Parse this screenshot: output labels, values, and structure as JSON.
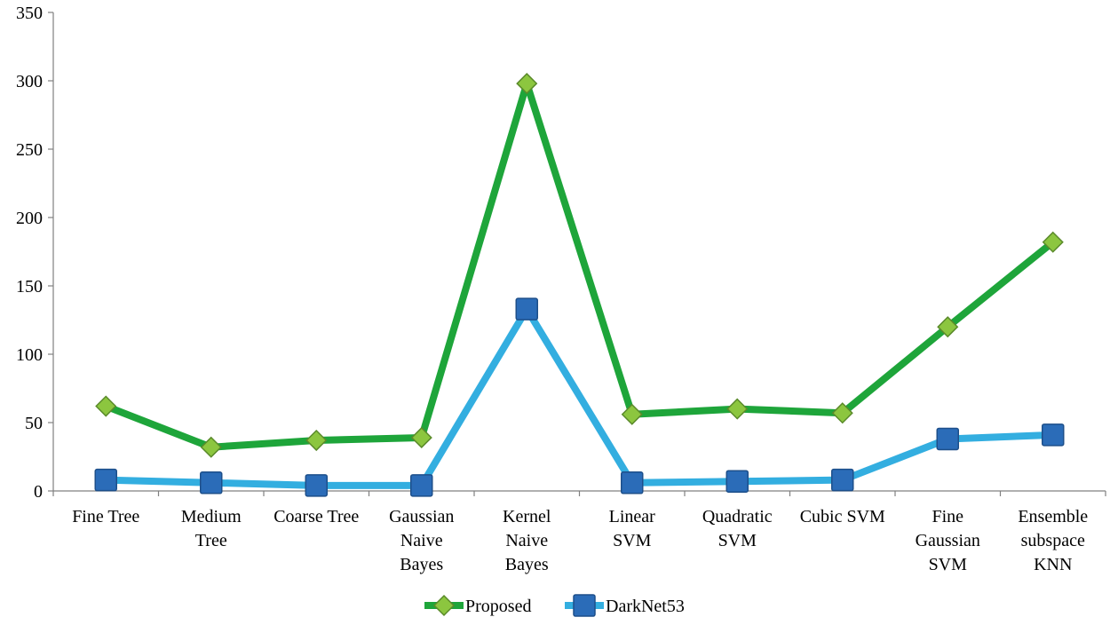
{
  "chart_data": {
    "type": "line",
    "title": "",
    "xlabel": "",
    "ylabel": "",
    "ylim": [
      0,
      350
    ],
    "yticks": [
      0,
      50,
      100,
      150,
      200,
      250,
      300,
      350
    ],
    "grid": false,
    "legend_position": "bottom",
    "categories": [
      [
        "Fine Tree"
      ],
      [
        "Medium",
        "Tree"
      ],
      [
        "Coarse Tree"
      ],
      [
        "Gaussian",
        "Naive",
        "Bayes"
      ],
      [
        "Kernel",
        "Naive",
        "Bayes"
      ],
      [
        "Linear",
        "SVM"
      ],
      [
        "Quadratic",
        "SVM"
      ],
      [
        "Cubic SVM"
      ],
      [
        "Fine",
        "Gaussian",
        "SVM"
      ],
      [
        "Ensemble",
        "subspace",
        "KNN"
      ]
    ],
    "series": [
      {
        "name": "Proposed",
        "color": "#1ea53a",
        "marker": "diamond",
        "marker_color": "#8cc63f",
        "values": [
          62,
          32,
          37,
          39,
          298,
          56,
          60,
          57,
          120,
          182
        ]
      },
      {
        "name": "DarkNet53",
        "color": "#33aee0",
        "marker": "square",
        "marker_color": "#2b6cb8",
        "values": [
          8,
          6,
          4,
          4,
          133,
          6,
          7,
          8,
          38,
          41
        ]
      }
    ]
  }
}
